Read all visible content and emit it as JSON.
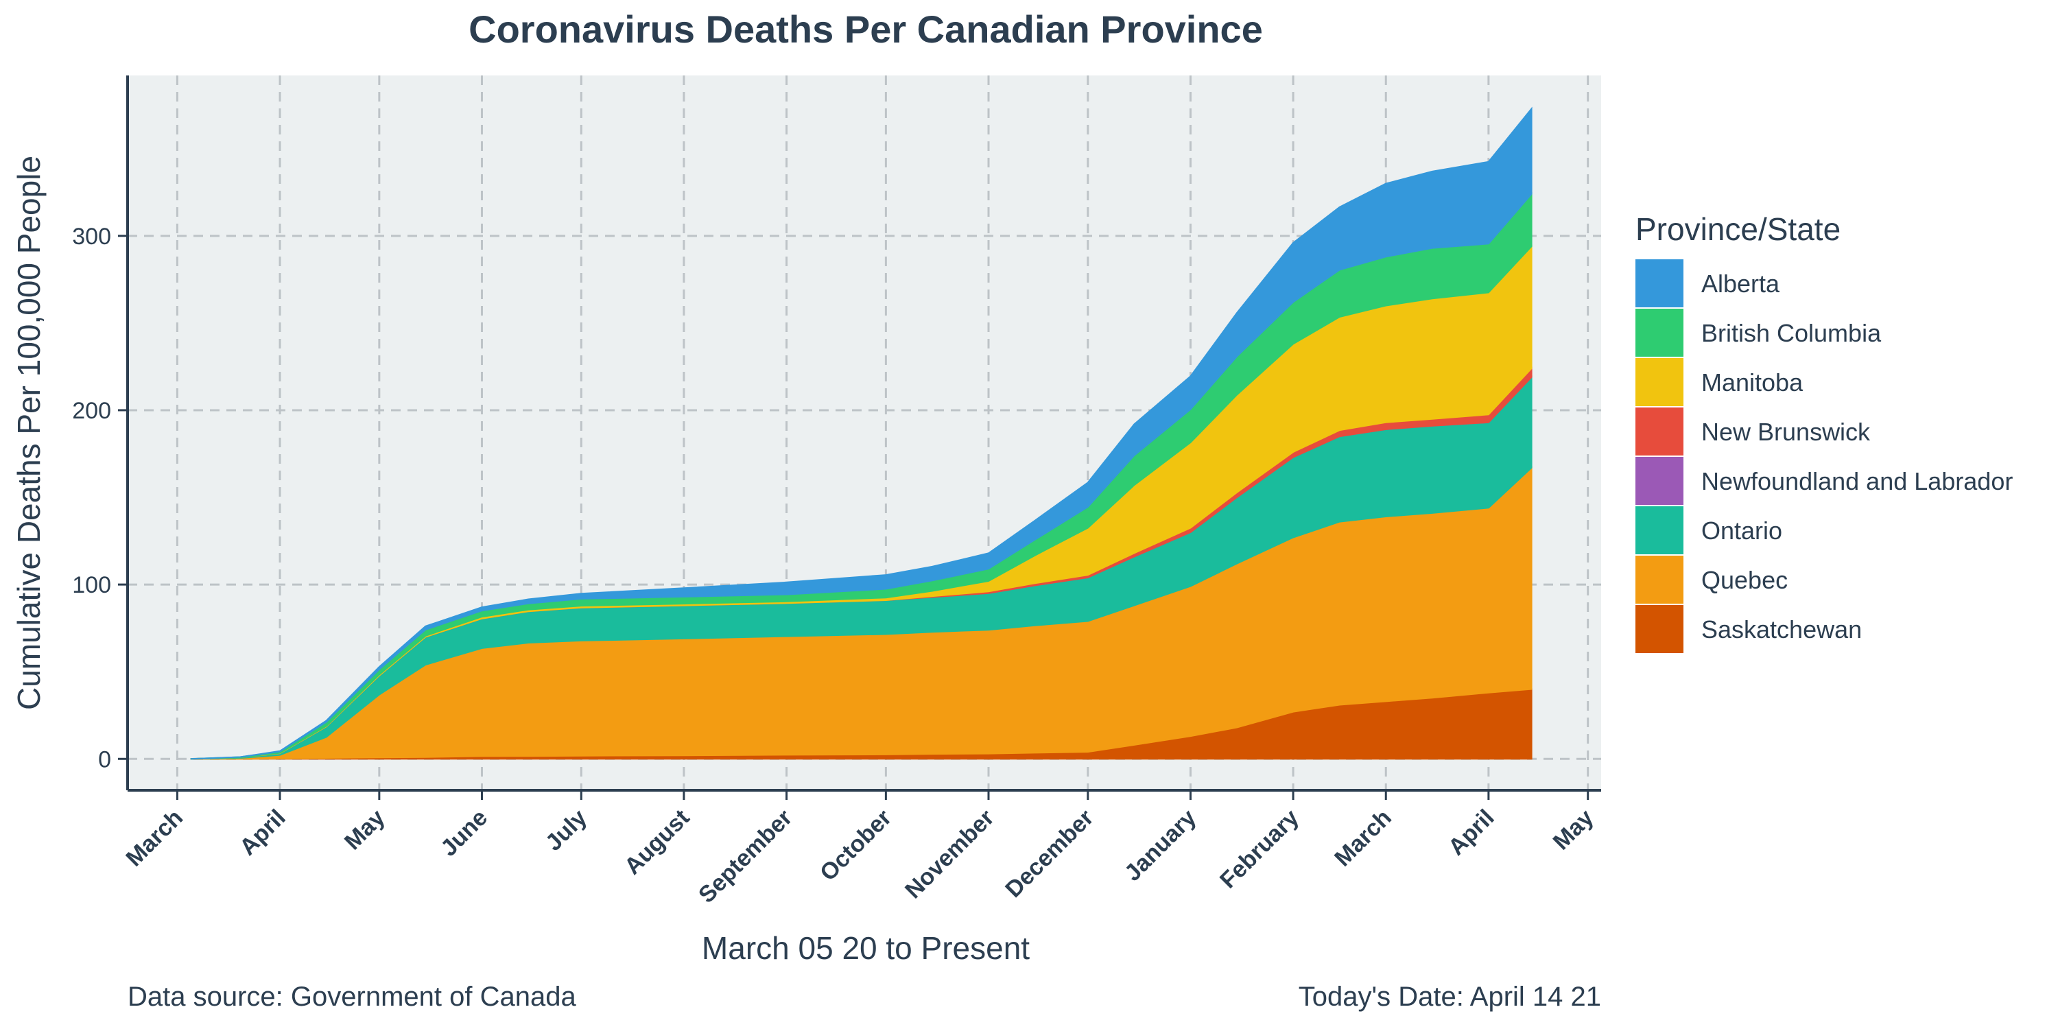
{
  "chart_data": {
    "type": "area",
    "stacked": true,
    "title": "Coronavirus Deaths Per Canadian Province",
    "xlabel": "March 05 20 to Present",
    "ylabel": "Cumulative Deaths Per 100,000 People",
    "caption_left": "Data source: Government of Canada",
    "caption_right": "Today's Date: April 14 21",
    "legend_title": "Province/State",
    "legend_position": "right",
    "grid": true,
    "xlim": [
      "2020-02-15",
      "2021-05-05"
    ],
    "ylim": [
      -18,
      392
    ],
    "y_ticks": [
      0,
      100,
      200,
      300
    ],
    "x_ticks": [
      {
        "label": "March",
        "date": "2020-03-01"
      },
      {
        "label": "April",
        "date": "2020-04-01"
      },
      {
        "label": "May",
        "date": "2020-05-01"
      },
      {
        "label": "June",
        "date": "2020-06-01"
      },
      {
        "label": "July",
        "date": "2020-07-01"
      },
      {
        "label": "August",
        "date": "2020-08-01"
      },
      {
        "label": "September",
        "date": "2020-09-01"
      },
      {
        "label": "October",
        "date": "2020-10-01"
      },
      {
        "label": "November",
        "date": "2020-11-01"
      },
      {
        "label": "December",
        "date": "2020-12-01"
      },
      {
        "label": "January",
        "date": "2021-01-01"
      },
      {
        "label": "February",
        "date": "2021-02-01"
      },
      {
        "label": "March",
        "date": "2021-03-01"
      },
      {
        "label": "April",
        "date": "2021-04-01"
      },
      {
        "label": "May",
        "date": "2021-05-01"
      }
    ],
    "x": [
      "2020-03-05",
      "2020-03-20",
      "2020-04-01",
      "2020-04-15",
      "2020-05-01",
      "2020-05-15",
      "2020-06-01",
      "2020-06-15",
      "2020-07-01",
      "2020-08-01",
      "2020-09-01",
      "2020-10-01",
      "2020-10-15",
      "2020-11-01",
      "2020-11-15",
      "2020-12-01",
      "2020-12-15",
      "2021-01-01",
      "2021-01-15",
      "2021-02-01",
      "2021-02-15",
      "2021-03-01",
      "2021-03-15",
      "2021-04-01",
      "2021-04-14"
    ],
    "series": [
      {
        "name": "Saskatchewan",
        "color": "#d35400",
        "values": [
          0,
          0,
          0.2,
          0.5,
          0.8,
          1,
          1.5,
          1.6,
          1.8,
          2,
          2.3,
          2.5,
          2.8,
          3,
          3.5,
          4,
          8,
          13,
          18,
          27,
          31,
          33,
          35,
          38,
          40
        ]
      },
      {
        "name": "Quebec",
        "color": "#f39c12",
        "values": [
          0,
          0.5,
          2,
          12,
          36,
          53,
          62,
          65,
          66,
          67,
          68,
          69,
          70,
          71,
          73,
          75,
          80,
          86,
          94,
          100,
          105,
          106,
          106,
          106,
          127
        ]
      },
      {
        "name": "Ontario",
        "color": "#1abc9c",
        "values": [
          0,
          0.3,
          1,
          6,
          11,
          16,
          17,
          18,
          19,
          19,
          19,
          19.5,
          20,
          21,
          23,
          25,
          28,
          31,
          38,
          46,
          49,
          50,
          50,
          49,
          52
        ]
      },
      {
        "name": "Newfoundland and Labrador",
        "color": "#9b59b6",
        "values": [
          0,
          0,
          0,
          0,
          0,
          0,
          0,
          0,
          0,
          0,
          0,
          0,
          0,
          0,
          0,
          0,
          0,
          0,
          0,
          0,
          0,
          0,
          0,
          0,
          0
        ]
      },
      {
        "name": "New Brunswick",
        "color": "#e74c3c",
        "values": [
          0,
          0,
          0,
          0,
          0,
          0,
          0,
          0,
          0,
          0,
          0,
          0,
          0.5,
          1,
          1.2,
          1.5,
          2,
          2.5,
          2.8,
          3,
          3.5,
          4,
          4,
          4.5,
          5
        ]
      },
      {
        "name": "Manitoba",
        "color": "#f1c40f",
        "values": [
          0,
          0,
          0.2,
          0.3,
          0.5,
          0.6,
          1,
          1,
          1,
          1,
          1,
          1.5,
          3,
          6,
          16,
          27,
          39,
          49,
          56,
          62,
          65,
          67,
          69,
          70,
          70
        ]
      },
      {
        "name": "British Columbia",
        "color": "#2ecc71",
        "values": [
          0,
          0.3,
          0.8,
          2.3,
          3,
          3.5,
          3.5,
          3.5,
          4,
          4,
          4,
          5,
          6,
          7,
          9,
          12,
          17,
          19,
          22,
          24,
          27,
          28,
          29,
          28,
          30
        ]
      },
      {
        "name": "Alberta",
        "color": "#3498db",
        "values": [
          0,
          0,
          0.3,
          0.8,
          1.5,
          2,
          2,
          2.5,
          3,
          5,
          7,
          8,
          8,
          9,
          11,
          14,
          18,
          19,
          25,
          34,
          36,
          42,
          44,
          47,
          49
        ]
      }
    ],
    "legend_order": [
      "Alberta",
      "British Columbia",
      "Manitoba",
      "New Brunswick",
      "Newfoundland and Labrador",
      "Ontario",
      "Quebec",
      "Saskatchewan"
    ]
  }
}
